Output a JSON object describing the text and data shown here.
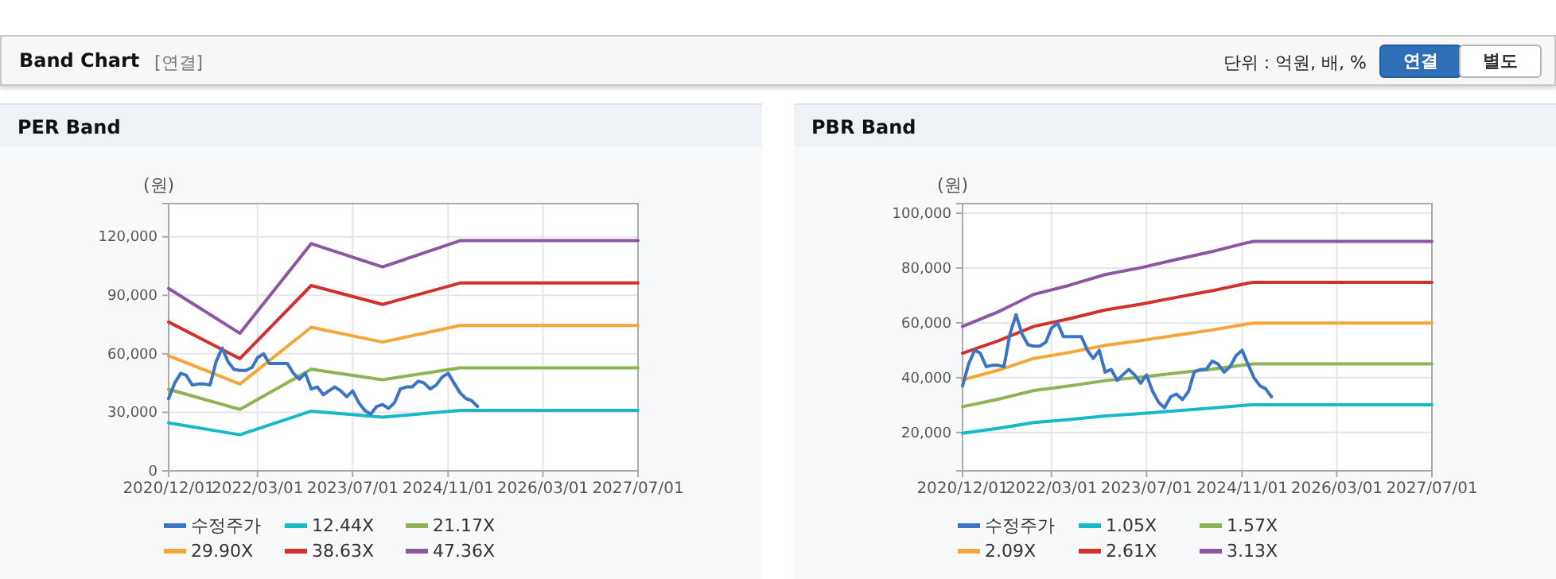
{
  "chart_data": [
    {
      "type": "other",
      "title": "Band Chart",
      "annotations": [
        "[연결]",
        "단위 : 억원, 배, %",
        "연결",
        "별도"
      ]
    },
    {
      "type": "line",
      "title": "PER Band",
      "ylabel": "(원)",
      "grid": true,
      "legend": "bottom",
      "xlim": [
        "2020-12-01",
        "2027-07-01"
      ],
      "ylim": [
        0,
        137000
      ],
      "xticks": [
        {
          "value": "2020-12-01",
          "label": "2020/12/01"
        },
        {
          "value": "2022-03-01",
          "label": "2022/03/01"
        },
        {
          "value": "2023-07-01",
          "label": "2023/07/01"
        },
        {
          "value": "2024-11-01",
          "label": "2024/11/01"
        },
        {
          "value": "2026-03-01",
          "label": "2026/03/01"
        },
        {
          "value": "2027-07-01",
          "label": "2027/07/01"
        }
      ],
      "yticks": [
        0,
        {
          "value": 30000,
          "label": "30,000"
        },
        {
          "value": 60000,
          "label": "60,000"
        },
        {
          "value": 90000,
          "label": "90,000"
        },
        {
          "value": 120000,
          "label": "120,000"
        }
      ],
      "series": [
        {
          "name": "수정주가",
          "color": "#3a75c4",
          "x": [
            "2020-12",
            "2021-01",
            "2021-02",
            "2021-03",
            "2021-04",
            "2021-05",
            "2021-06",
            "2021-07",
            "2021-08",
            "2021-09",
            "2021-10",
            "2021-11",
            "2021-12",
            "2022-01",
            "2022-02",
            "2022-03",
            "2022-04",
            "2022-05",
            "2022-06",
            "2022-07",
            "2022-08",
            "2022-09",
            "2022-10",
            "2022-11",
            "2022-12",
            "2023-01",
            "2023-02",
            "2023-03",
            "2023-04",
            "2023-05",
            "2023-06",
            "2023-07",
            "2023-08",
            "2023-09",
            "2023-10",
            "2023-11",
            "2023-12",
            "2024-01",
            "2024-02",
            "2024-03",
            "2024-04",
            "2024-05",
            "2024-06",
            "2024-07",
            "2024-08",
            "2024-09",
            "2024-10",
            "2024-11",
            "2024-12",
            "2025-01",
            "2025-02",
            "2025-03",
            "2025-04"
          ],
          "values": [
            37000,
            45000,
            50000,
            49000,
            44000,
            44500,
            44500,
            44000,
            56000,
            63000,
            56000,
            52000,
            51500,
            51500,
            53000,
            58000,
            60000,
            55000,
            55000,
            55000,
            55000,
            50000,
            47000,
            50000,
            42000,
            43000,
            39000,
            41000,
            43000,
            41000,
            38000,
            41000,
            35000,
            31000,
            29000,
            33000,
            34000,
            32000,
            35000,
            42000,
            43000,
            43000,
            46000,
            45000,
            42000,
            44000,
            48000,
            50000,
            45000,
            40000,
            37000,
            36000,
            33000
          ]
        },
        {
          "name": "12.44X",
          "color": "#17b8c8",
          "x": [
            "2020-12",
            "2021-12",
            "2022-12",
            "2023-12",
            "2025-01",
            "2027-07"
          ],
          "values": [
            24600,
            18500,
            30600,
            27500,
            31000,
            31000
          ]
        },
        {
          "name": "21.17X",
          "color": "#8db354",
          "x": [
            "2020-12",
            "2021-12",
            "2022-12",
            "2023-12",
            "2025-01",
            "2027-07"
          ],
          "values": [
            41800,
            31500,
            52100,
            46700,
            52800,
            52800
          ]
        },
        {
          "name": "29.90X",
          "color": "#f5a63a",
          "x": [
            "2020-12",
            "2021-12",
            "2022-12",
            "2023-12",
            "2025-01",
            "2027-07"
          ],
          "values": [
            59000,
            44500,
            73600,
            66000,
            74500,
            74500
          ]
        },
        {
          "name": "38.63X",
          "color": "#d0312d",
          "x": [
            "2020-12",
            "2021-12",
            "2022-12",
            "2023-12",
            "2025-01",
            "2027-07"
          ],
          "values": [
            76300,
            57500,
            95000,
            85300,
            96300,
            96300
          ]
        },
        {
          "name": "47.36X",
          "color": "#8c56a0",
          "x": [
            "2020-12",
            "2021-12",
            "2022-12",
            "2023-12",
            "2025-01",
            "2027-07"
          ],
          "values": [
            93500,
            70500,
            116500,
            104500,
            118000,
            118000
          ]
        }
      ]
    },
    {
      "type": "line",
      "title": "PBR Band",
      "ylabel": "(원)",
      "grid": true,
      "legend": "bottom",
      "xlim": [
        "2020-12-01",
        "2027-07-01"
      ],
      "ylim": [
        6000,
        103500
      ],
      "xticks": [
        {
          "value": "2020-12-01",
          "label": "2020/12/01"
        },
        {
          "value": "2022-03-01",
          "label": "2022/03/01"
        },
        {
          "value": "2023-07-01",
          "label": "2023/07/01"
        },
        {
          "value": "2024-11-01",
          "label": "2024/11/01"
        },
        {
          "value": "2026-03-01",
          "label": "2026/03/01"
        },
        {
          "value": "2027-07-01",
          "label": "2027/07/01"
        }
      ],
      "yticks": [
        {
          "value": 20000,
          "label": "20,000"
        },
        {
          "value": 40000,
          "label": "40,000"
        },
        {
          "value": 60000,
          "label": "60,000"
        },
        {
          "value": 80000,
          "label": "80,000"
        },
        {
          "value": 100000,
          "label": "100,000"
        }
      ],
      "series": [
        {
          "name": "수정주가",
          "color": "#3a75c4",
          "x": [
            "2020-12",
            "2021-01",
            "2021-02",
            "2021-03",
            "2021-04",
            "2021-05",
            "2021-06",
            "2021-07",
            "2021-08",
            "2021-09",
            "2021-10",
            "2021-11",
            "2021-12",
            "2022-01",
            "2022-02",
            "2022-03",
            "2022-04",
            "2022-05",
            "2022-06",
            "2022-07",
            "2022-08",
            "2022-09",
            "2022-10",
            "2022-11",
            "2022-12",
            "2023-01",
            "2023-02",
            "2023-03",
            "2023-04",
            "2023-05",
            "2023-06",
            "2023-07",
            "2023-08",
            "2023-09",
            "2023-10",
            "2023-11",
            "2023-12",
            "2024-01",
            "2024-02",
            "2024-03",
            "2024-04",
            "2024-05",
            "2024-06",
            "2024-07",
            "2024-08",
            "2024-09",
            "2024-10",
            "2024-11",
            "2024-12",
            "2025-01",
            "2025-02",
            "2025-03",
            "2025-04"
          ],
          "values": [
            37000,
            45000,
            50000,
            49000,
            44000,
            44500,
            44500,
            44000,
            56000,
            63000,
            56000,
            52000,
            51500,
            51500,
            53000,
            58000,
            60000,
            55000,
            55000,
            55000,
            55000,
            50000,
            47000,
            50000,
            42000,
            43000,
            39000,
            41000,
            43000,
            41000,
            38000,
            41000,
            35000,
            31000,
            29000,
            33000,
            34000,
            32000,
            35000,
            42000,
            43000,
            43000,
            46000,
            45000,
            42000,
            44000,
            48000,
            50000,
            45000,
            40000,
            37000,
            36000,
            33000
          ]
        },
        {
          "name": "1.05X",
          "color": "#17b8c8",
          "x": [
            "2020-12",
            "2021-06",
            "2021-12",
            "2022-06",
            "2022-12",
            "2023-06",
            "2023-12",
            "2024-06",
            "2024-12",
            "2025-01",
            "2027-07"
          ],
          "values": [
            19700,
            21500,
            23600,
            24700,
            26000,
            26900,
            27900,
            28900,
            30000,
            30100,
            30100
          ]
        },
        {
          "name": "1.57X",
          "color": "#8db354",
          "x": [
            "2020-12",
            "2021-06",
            "2021-12",
            "2022-06",
            "2022-12",
            "2023-06",
            "2023-12",
            "2024-06",
            "2024-12",
            "2025-01",
            "2027-07"
          ],
          "values": [
            29400,
            32100,
            35300,
            37000,
            38900,
            40200,
            41700,
            43100,
            44800,
            45000,
            45000
          ]
        },
        {
          "name": "2.09X",
          "color": "#f5a63a",
          "x": [
            "2020-12",
            "2021-06",
            "2021-12",
            "2022-06",
            "2022-12",
            "2023-06",
            "2023-12",
            "2024-06",
            "2024-12",
            "2025-01",
            "2027-07"
          ],
          "values": [
            39200,
            42700,
            47000,
            49200,
            51800,
            53500,
            55500,
            57400,
            59600,
            59900,
            59900
          ]
        },
        {
          "name": "2.61X",
          "color": "#d0312d",
          "x": [
            "2020-12",
            "2021-06",
            "2021-12",
            "2022-06",
            "2022-12",
            "2023-06",
            "2023-12",
            "2024-06",
            "2024-12",
            "2025-01",
            "2027-07"
          ],
          "values": [
            48900,
            53400,
            58700,
            61500,
            64700,
            66800,
            69300,
            71700,
            74500,
            74800,
            74800
          ]
        },
        {
          "name": "3.13X",
          "color": "#8c56a0",
          "x": [
            "2020-12",
            "2021-06",
            "2021-12",
            "2022-06",
            "2022-12",
            "2023-06",
            "2023-12",
            "2024-06",
            "2024-12",
            "2025-01",
            "2027-07"
          ],
          "values": [
            58700,
            64000,
            70400,
            73700,
            77600,
            80100,
            83100,
            86000,
            89300,
            89700,
            89700
          ]
        }
      ]
    }
  ]
}
